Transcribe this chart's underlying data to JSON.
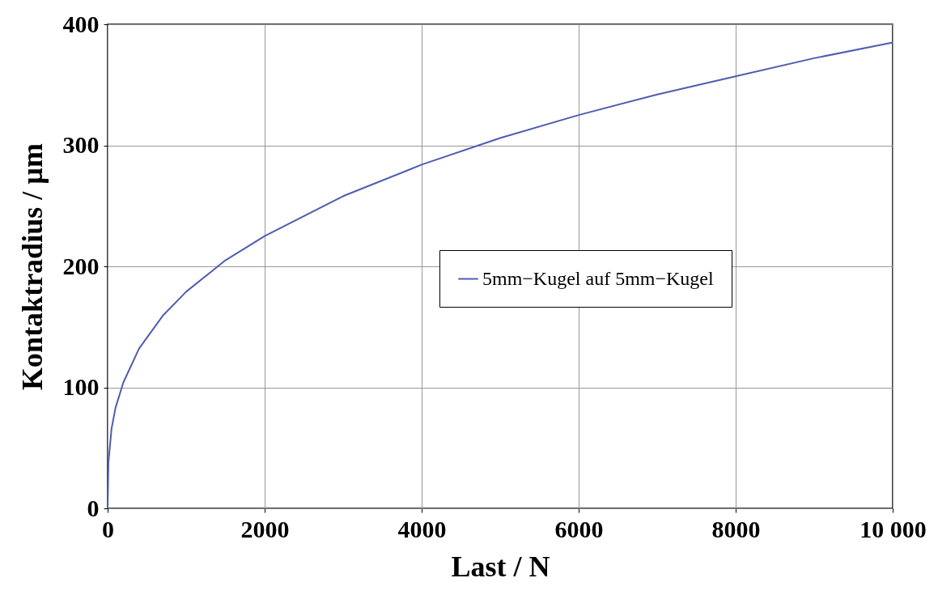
{
  "chart_data": {
    "type": "line",
    "xlabel": "Last / N",
    "ylabel": "Kontaktradius / µm",
    "x": [
      0,
      10,
      50,
      100,
      200,
      400,
      700,
      1000,
      1500,
      2000,
      3000,
      4000,
      5000,
      6000,
      7000,
      8000,
      9000,
      10000
    ],
    "series": [
      {
        "name": "5mm−Kugel auf 5mm−Kugel",
        "color": "#4f5cb0",
        "values": [
          0,
          38,
          66,
          83,
          104,
          132,
          159,
          179,
          205,
          225,
          258,
          284,
          306,
          325,
          342,
          357,
          372,
          385
        ]
      }
    ],
    "xlim": [
      0,
      10000
    ],
    "xticks": [
      0,
      2000,
      4000,
      6000,
      8000,
      {
        "value": 10000,
        "label": "10 000"
      }
    ],
    "ylim": [
      0,
      400
    ],
    "yticks": [
      0,
      100,
      200,
      300,
      400
    ],
    "grid": true,
    "legend": "right",
    "line_style": "solid",
    "marker": "none"
  }
}
